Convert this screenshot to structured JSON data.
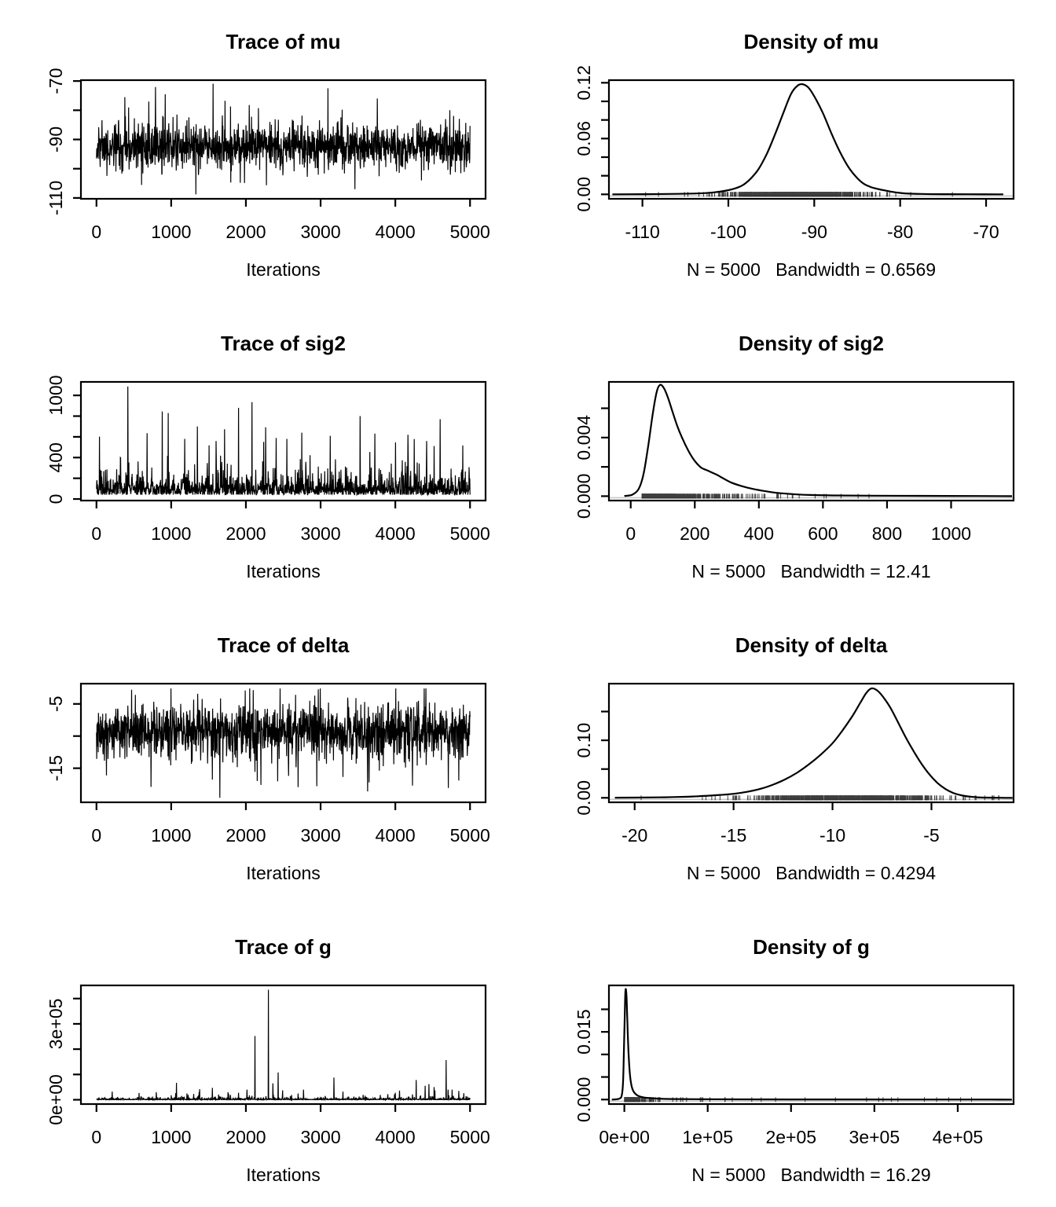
{
  "colors": {
    "foreground": "#000000",
    "background": "#ffffff",
    "zero_line": "#c8c8c8"
  },
  "chart_data": [
    {
      "type": "line",
      "kind": "trace",
      "title": "Trace of mu",
      "xlabel": "Iterations",
      "xlim": [
        -208,
        5208
      ],
      "ylim": [
        -110.3,
        -69.7
      ],
      "xticks": {
        "values": [
          0,
          1000,
          2000,
          3000,
          4000,
          5000
        ],
        "labels": [
          "0",
          "1000",
          "2000",
          "3000",
          "4000",
          "5000"
        ]
      },
      "yticks": {
        "values": [
          -110,
          -100,
          -90,
          -80,
          -70
        ],
        "labels": [
          "-110",
          "",
          "-90",
          "",
          "-70"
        ]
      },
      "series": {
        "seed": 11,
        "draw_points": 1500,
        "dist": {
          "type": "normal_mix",
          "mean": -92.4,
          "sd": 3.6,
          "sd2": 6.6,
          "p2": 0.09,
          "clip": [
            -108.9,
            -71.3
          ]
        },
        "spikes": [
          [
            1560,
            -70.9
          ],
          [
            380,
            -75.5
          ],
          [
            700,
            -77.0
          ],
          [
            920,
            -74.5
          ],
          [
            3100,
            -72.5
          ],
          [
            3760,
            -76.0
          ],
          [
            1330,
            -108.8
          ],
          [
            3460,
            -107.0
          ],
          [
            4350,
            -104.0
          ]
        ]
      }
    },
    {
      "type": "area",
      "kind": "density",
      "title": "Density of mu",
      "sub": "N = 5000   Bandwidth = 0.6569",
      "N": 5000,
      "bandwidth": 0.6569,
      "xlim": [
        -113.9,
        -66.8
      ],
      "ylim": [
        -0.0048,
        0.1228
      ],
      "xticks": {
        "values": [
          -110,
          -100,
          -90,
          -80,
          -70
        ],
        "labels": [
          "-110",
          "-100",
          "-90",
          "-80",
          "-70"
        ]
      },
      "yticks": {
        "values": [
          0,
          0.02,
          0.04,
          0.06,
          0.08,
          0.1,
          0.12
        ],
        "labels": [
          "0.00",
          "",
          "",
          "0.06",
          "",
          "",
          "0.12"
        ]
      },
      "curve": [
        [
          -113.5,
          5e-05
        ],
        [
          -110,
          0.0002
        ],
        [
          -107,
          0.0004
        ],
        [
          -104,
          0.0009
        ],
        [
          -102,
          0.0018
        ],
        [
          -100,
          0.0045
        ],
        [
          -98.5,
          0.009
        ],
        [
          -97.5,
          0.016
        ],
        [
          -96.5,
          0.027
        ],
        [
          -95.5,
          0.044
        ],
        [
          -94.5,
          0.066
        ],
        [
          -93.5,
          0.09
        ],
        [
          -92.7,
          0.108
        ],
        [
          -92,
          0.1165
        ],
        [
          -91.4,
          0.1185
        ],
        [
          -90.7,
          0.115
        ],
        [
          -90,
          0.1055
        ],
        [
          -89,
          0.0875
        ],
        [
          -88,
          0.0655
        ],
        [
          -87,
          0.0455
        ],
        [
          -86,
          0.029
        ],
        [
          -85,
          0.0175
        ],
        [
          -84.2,
          0.0112
        ],
        [
          -83.4,
          0.0078
        ],
        [
          -82.6,
          0.0058
        ],
        [
          -81.8,
          0.0042
        ],
        [
          -81,
          0.0028
        ],
        [
          -80,
          0.0015
        ],
        [
          -79,
          0.0008
        ],
        [
          -77.5,
          0.0004
        ],
        [
          -75,
          0.00015
        ],
        [
          -72,
          8e-05
        ],
        [
          -68,
          2e-05
        ]
      ],
      "rug": {
        "seed": 111,
        "n": 900,
        "dist": {
          "type": "normal_mix",
          "mean": -92.4,
          "sd": 3.7,
          "sd2": 7.2,
          "p2": 0.1,
          "clip": [
            -112.8,
            -68.0
          ]
        }
      }
    },
    {
      "type": "line",
      "kind": "trace",
      "title": "Trace of sig2",
      "xlabel": "Iterations",
      "xlim": [
        -208,
        5208
      ],
      "ylim": [
        -15,
        1130
      ],
      "xticks": {
        "values": [
          0,
          1000,
          2000,
          3000,
          4000,
          5000
        ],
        "labels": [
          "0",
          "1000",
          "2000",
          "3000",
          "4000",
          "5000"
        ]
      },
      "yticks": {
        "values": [
          0,
          200,
          400,
          600,
          800,
          1000
        ],
        "labels": [
          "0",
          "",
          "400",
          "",
          "",
          "1000"
        ]
      },
      "series": {
        "seed": 22,
        "draw_points": 1500,
        "dist": {
          "type": "lognormal",
          "mu": 4.52,
          "sigma": 0.6,
          "boost": 1.7,
          "p_boost": 0.04,
          "clip": [
            42,
            1085
          ]
        },
        "spikes": [
          [
            420,
            1085
          ],
          [
            2080,
            935
          ],
          [
            1900,
            880
          ],
          [
            880,
            845
          ],
          [
            960,
            830
          ],
          [
            3530,
            800
          ],
          [
            4600,
            770
          ],
          [
            1350,
            700
          ],
          [
            2750,
            640
          ],
          [
            3130,
            610
          ],
          [
            4170,
            620
          ],
          [
            4420,
            560
          ],
          [
            2550,
            580
          ],
          [
            1180,
            580
          ],
          [
            1600,
            560
          ]
        ]
      }
    },
    {
      "type": "area",
      "kind": "density",
      "title": "Density of sig2",
      "sub": "N = 5000   Bandwidth = 12.41",
      "N": 5000,
      "bandwidth": 12.41,
      "xlim": [
        -68,
        1195
      ],
      "ylim": [
        -0.0003,
        0.0078
      ],
      "xticks": {
        "values": [
          0,
          200,
          400,
          600,
          800,
          1000
        ],
        "labels": [
          "0",
          "200",
          "400",
          "600",
          "800",
          "1000"
        ]
      },
      "yticks": {
        "values": [
          0,
          0.002,
          0.004,
          0.006
        ],
        "labels": [
          "0.000",
          "",
          "0.004",
          ""
        ]
      },
      "curve": [
        [
          -20,
          1e-05
        ],
        [
          5,
          0.0001
        ],
        [
          25,
          0.0005
        ],
        [
          40,
          0.0015
        ],
        [
          55,
          0.0035
        ],
        [
          70,
          0.0058
        ],
        [
          82,
          0.0072
        ],
        [
          92,
          0.0076
        ],
        [
          103,
          0.0074
        ],
        [
          115,
          0.0068
        ],
        [
          130,
          0.0058
        ],
        [
          145,
          0.0048
        ],
        [
          160,
          0.004
        ],
        [
          180,
          0.0031
        ],
        [
          200,
          0.0024
        ],
        [
          220,
          0.00195
        ],
        [
          240,
          0.00175
        ],
        [
          255,
          0.0016
        ],
        [
          270,
          0.00145
        ],
        [
          290,
          0.0012
        ],
        [
          315,
          0.00092
        ],
        [
          345,
          0.0007
        ],
        [
          380,
          0.0005
        ],
        [
          420,
          0.00034
        ],
        [
          460,
          0.00022
        ],
        [
          510,
          0.00013
        ],
        [
          560,
          8e-05
        ],
        [
          640,
          5e-05
        ],
        [
          750,
          3e-05
        ],
        [
          900,
          2e-05
        ],
        [
          1080,
          1e-05
        ],
        [
          1190,
          0
        ]
      ],
      "rug": {
        "seed": 222,
        "n": 900,
        "dist": {
          "type": "lognormal",
          "mu": 4.52,
          "sigma": 0.65,
          "boost": 1.8,
          "p_boost": 0.05,
          "clip": [
            35,
            1150
          ]
        }
      }
    },
    {
      "type": "line",
      "kind": "trace",
      "title": "Trace of delta",
      "xlabel": "Iterations",
      "xlim": [
        -208,
        5208
      ],
      "ylim": [
        -20.3,
        -1.85
      ],
      "xticks": {
        "values": [
          0,
          1000,
          2000,
          3000,
          4000,
          5000
        ],
        "labels": [
          "0",
          "1000",
          "2000",
          "3000",
          "4000",
          "5000"
        ]
      },
      "yticks": {
        "values": [
          -15,
          -10,
          -5
        ],
        "labels": [
          "-15",
          "",
          "-5"
        ]
      },
      "series": {
        "seed": 33,
        "draw_points": 1500,
        "dist": {
          "type": "normal_mix",
          "mean": -9.3,
          "sd": 2.05,
          "sd2": 3.9,
          "p2": 0.1,
          "clip": [
            -18.6,
            -2.6
          ]
        },
        "spikes": [
          [
            1650,
            -19.6
          ],
          [
            730,
            -17.9
          ],
          [
            2200,
            -17.6
          ],
          [
            2950,
            -17.8
          ],
          [
            4230,
            -17.7
          ],
          [
            2050,
            -2.6
          ],
          [
            470,
            -2.8
          ],
          [
            3650,
            -17.2
          ],
          [
            4850,
            -16.9
          ]
        ]
      }
    },
    {
      "type": "area",
      "kind": "density",
      "title": "Density of delta",
      "sub": "N = 5000   Bandwidth = 0.4294",
      "N": 5000,
      "bandwidth": 0.4294,
      "xlim": [
        -21.3,
        -0.85
      ],
      "ylim": [
        -0.0078,
        0.1985
      ],
      "xticks": {
        "values": [
          -20,
          -15,
          -10,
          -5
        ],
        "labels": [
          "-20",
          "-15",
          "-10",
          "-5"
        ]
      },
      "yticks": {
        "values": [
          0,
          0.05,
          0.1,
          0.15
        ],
        "labels": [
          "0.00",
          "",
          "0.10",
          ""
        ]
      },
      "curve": [
        [
          -21,
          0.0002
        ],
        [
          -19.5,
          0.0005
        ],
        [
          -18.5,
          0.001
        ],
        [
          -17.5,
          0.0018
        ],
        [
          -16.5,
          0.0032
        ],
        [
          -15.5,
          0.0055
        ],
        [
          -15,
          0.007
        ],
        [
          -14.3,
          0.0105
        ],
        [
          -13.6,
          0.016
        ],
        [
          -13,
          0.023
        ],
        [
          -12.4,
          0.032
        ],
        [
          -11.8,
          0.0435
        ],
        [
          -11.2,
          0.058
        ],
        [
          -10.6,
          0.075
        ],
        [
          -10,
          0.095
        ],
        [
          -9.5,
          0.117
        ],
        [
          -9,
          0.142
        ],
        [
          -8.6,
          0.165
        ],
        [
          -8.3,
          0.182
        ],
        [
          -8.05,
          0.19
        ],
        [
          -7.8,
          0.188
        ],
        [
          -7.5,
          0.178
        ],
        [
          -7.1,
          0.158
        ],
        [
          -6.7,
          0.132
        ],
        [
          -6.3,
          0.105
        ],
        [
          -5.9,
          0.081
        ],
        [
          -5.5,
          0.059
        ],
        [
          -5.1,
          0.0405
        ],
        [
          -4.7,
          0.026
        ],
        [
          -4.3,
          0.0155
        ],
        [
          -3.9,
          0.0085
        ],
        [
          -3.5,
          0.0045
        ],
        [
          -3.1,
          0.0022
        ],
        [
          -2.7,
          0.001
        ],
        [
          -2.2,
          0.0004
        ],
        [
          -1.5,
          0.0001
        ],
        [
          -0.9,
          0
        ]
      ],
      "rug": {
        "seed": 333,
        "n": 900,
        "dist": {
          "type": "normal_mix",
          "mean": -9.3,
          "sd": 2.3,
          "sd2": 4.0,
          "p2": 0.1,
          "clip": [
            -20.2,
            -1.6
          ]
        }
      }
    },
    {
      "type": "line",
      "kind": "trace",
      "title": "Trace of g",
      "xlabel": "Iterations",
      "xlim": [
        -208,
        5208
      ],
      "ylim": [
        -17000,
        452000
      ],
      "xticks": {
        "values": [
          0,
          1000,
          2000,
          3000,
          4000,
          5000
        ],
        "labels": [
          "0",
          "1000",
          "2000",
          "3000",
          "4000",
          "5000"
        ]
      },
      "yticks": {
        "values": [
          0,
          100000,
          200000,
          300000,
          400000
        ],
        "labels": [
          "0e+00",
          "",
          "",
          "3e+05",
          ""
        ]
      },
      "series": {
        "seed": 44,
        "draw_points": 1500,
        "dist": {
          "type": "lognormal",
          "mu": 7.1,
          "sigma": 1.25,
          "boost": 1.0,
          "p_boost": 0.0,
          "clip": [
            250,
            40000
          ]
        },
        "spikes": [
          [
            800,
            30000
          ],
          [
            1070,
            67000
          ],
          [
            1210,
            25000
          ],
          [
            1380,
            42000
          ],
          [
            1550,
            47000
          ],
          [
            1760,
            30000
          ],
          [
            2120,
            252000
          ],
          [
            2300,
            435000
          ],
          [
            2360,
            65000
          ],
          [
            2430,
            108000
          ],
          [
            2700,
            25000
          ],
          [
            3180,
            88000
          ],
          [
            3300,
            32000
          ],
          [
            3900,
            22000
          ],
          [
            4280,
            78000
          ],
          [
            4400,
            55000
          ],
          [
            4450,
            62000
          ],
          [
            4520,
            50000
          ],
          [
            4680,
            157000
          ],
          [
            4760,
            40000
          ],
          [
            4850,
            35000
          ]
        ]
      }
    },
    {
      "type": "area",
      "kind": "density",
      "title": "Density of g",
      "sub": "N = 5000   Bandwidth = 16.29",
      "N": 5000,
      "bandwidth": 16.29,
      "xlim": [
        -18500,
        467000
      ],
      "ylim": [
        -0.001,
        0.0253
      ],
      "xticks": {
        "values": [
          0,
          100000,
          200000,
          300000,
          400000
        ],
        "labels": [
          "0e+00",
          "1e+05",
          "2e+05",
          "3e+05",
          "4e+05"
        ]
      },
      "yticks": {
        "values": [
          0,
          0.005,
          0.01,
          0.015,
          0.02
        ],
        "labels": [
          "0.000",
          "",
          "",
          "0.015",
          ""
        ]
      },
      "curve": [
        [
          -15000,
          0
        ],
        [
          -6000,
          0.0002
        ],
        [
          -3000,
          0.001
        ],
        [
          -1500,
          0.004
        ],
        [
          -500,
          0.011
        ],
        [
          500,
          0.019
        ],
        [
          1200,
          0.0238
        ],
        [
          2000,
          0.0243
        ],
        [
          2800,
          0.022
        ],
        [
          3800,
          0.016
        ],
        [
          5000,
          0.0105
        ],
        [
          6500,
          0.006
        ],
        [
          8500,
          0.0032
        ],
        [
          11000,
          0.0018
        ],
        [
          15000,
          0.001
        ],
        [
          20000,
          0.0006
        ],
        [
          28000,
          0.00035
        ],
        [
          40000,
          0.0002
        ],
        [
          60000,
          0.00012
        ],
        [
          90000,
          8e-05
        ],
        [
          140000,
          5e-05
        ],
        [
          200000,
          3e-05
        ],
        [
          280000,
          2e-05
        ],
        [
          380000,
          1e-05
        ],
        [
          440000,
          5e-06
        ],
        [
          465000,
          0
        ]
      ],
      "rug": {
        "seed": 444,
        "n": 600,
        "dist": {
          "type": "lognormal",
          "mu": 8.2,
          "sigma": 1.1,
          "boost": 1.0,
          "p_boost": 0.0,
          "p_uniform": 0.05,
          "umax": 440000,
          "clip": [
            200,
            450000
          ]
        }
      }
    }
  ]
}
